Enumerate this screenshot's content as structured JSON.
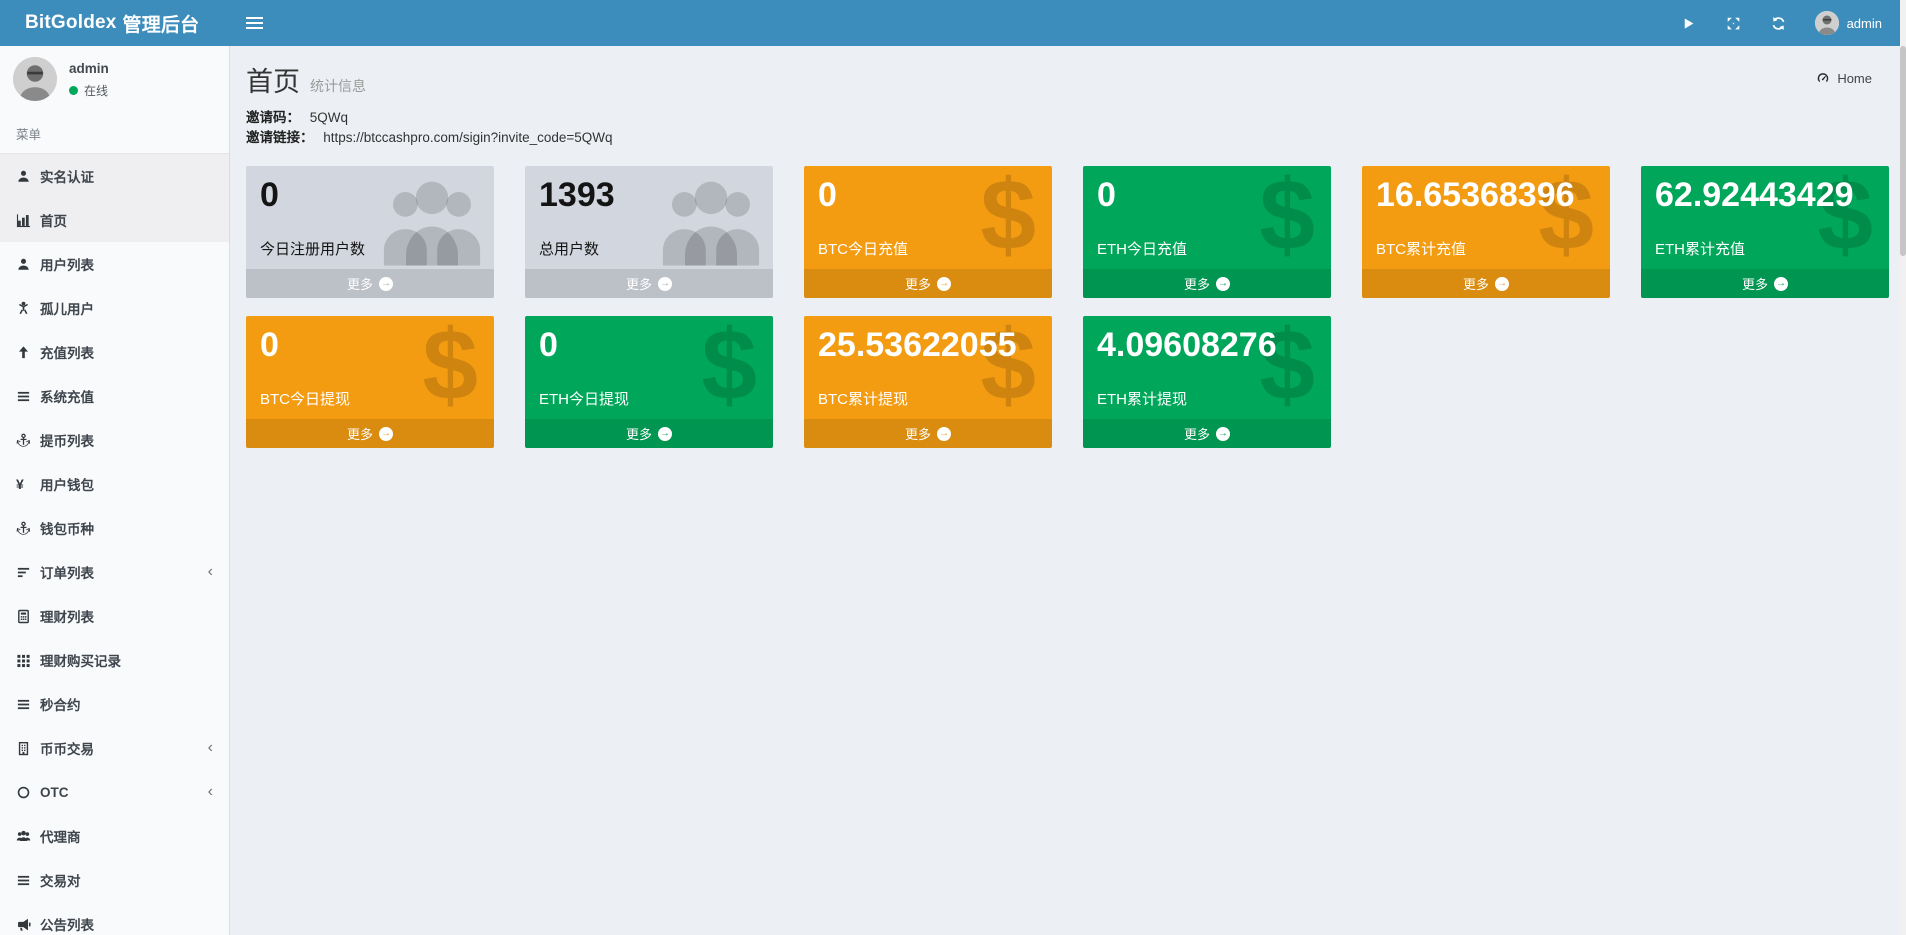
{
  "colors": {
    "navbar": "#3c8dbc",
    "orange": "#f39c12",
    "green": "#00a65a",
    "graybox": "#d2d6de",
    "content_bg": "#ecf0f5",
    "sidebar_bg": "#f9fafc",
    "active_row": "#efeff1"
  },
  "navbar": {
    "brand_bold": "BitGoldex",
    "brand_rest": "管理后台",
    "user": "admin",
    "icons": [
      "play-icon",
      "expand-icon",
      "refresh-icon"
    ]
  },
  "sidebar": {
    "user": {
      "name": "admin",
      "status": "在线"
    },
    "section_label": "菜单",
    "items": [
      {
        "key": "real-name-auth",
        "label": "实名认证",
        "icon": "user-icon",
        "active": true,
        "has_children": false
      },
      {
        "key": "home",
        "label": "首页",
        "icon": "chart-bar-icon",
        "active": true,
        "has_children": false
      },
      {
        "key": "user-list",
        "label": "用户列表",
        "icon": "user-icon",
        "active": false,
        "has_children": false
      },
      {
        "key": "orphan-users",
        "label": "孤儿用户",
        "icon": "child-icon",
        "active": false,
        "has_children": false
      },
      {
        "key": "recharge-list",
        "label": "充值列表",
        "icon": "arrow-up-icon",
        "active": false,
        "has_children": false
      },
      {
        "key": "system-recharge",
        "label": "系统充值",
        "icon": "list-icon",
        "active": false,
        "has_children": false
      },
      {
        "key": "withdraw-list",
        "label": "提币列表",
        "icon": "anchor-icon",
        "active": false,
        "has_children": false
      },
      {
        "key": "user-wallet",
        "label": "用户钱包",
        "icon": "yen-icon",
        "active": false,
        "has_children": false
      },
      {
        "key": "wallet-currency",
        "label": "钱包币种",
        "icon": "anchor-icon",
        "active": false,
        "has_children": false
      },
      {
        "key": "order-list",
        "label": "订单列表",
        "icon": "sort-icon",
        "active": false,
        "has_children": true
      },
      {
        "key": "finance-list",
        "label": "理财列表",
        "icon": "calculator-icon",
        "active": false,
        "has_children": false
      },
      {
        "key": "finance-buy-records",
        "label": "理财购买记录",
        "icon": "grid-icon",
        "active": false,
        "has_children": false
      },
      {
        "key": "second-contract",
        "label": "秒合约",
        "icon": "list-icon",
        "active": false,
        "has_children": false
      },
      {
        "key": "coin-trade",
        "label": "币币交易",
        "icon": "building-icon",
        "active": false,
        "has_children": true
      },
      {
        "key": "otc",
        "label": "OTC",
        "icon": "circle-o-icon",
        "active": false,
        "has_children": true
      },
      {
        "key": "agents",
        "label": "代理商",
        "icon": "users-icon",
        "active": false,
        "has_children": false
      },
      {
        "key": "trading-pairs",
        "label": "交易对",
        "icon": "list-icon",
        "active": false,
        "has_children": false
      },
      {
        "key": "announcement-list",
        "label": "公告列表",
        "icon": "bullhorn-icon",
        "active": false,
        "has_children": false
      }
    ]
  },
  "content": {
    "header": {
      "title": "首页",
      "subtitle": "统计信息",
      "breadcrumb": "Home",
      "breadcrumb_icon": "dashboard-icon"
    },
    "invite": {
      "code_label": "邀请码：",
      "code": "5QWq",
      "link_label": "邀请链接：",
      "link": "https://btccashpro.com/sigin?invite_code=5QWq"
    },
    "more_label": "更多",
    "boxes": [
      {
        "key": "today-registered-users",
        "value": "0",
        "label": "今日注册用户数",
        "color": "gray",
        "icon": "users-icon"
      },
      {
        "key": "total-users",
        "value": "1393",
        "label": "总用户数",
        "color": "gray",
        "icon": "users-icon"
      },
      {
        "key": "btc-today-recharge",
        "value": "0",
        "label": "BTC今日充值",
        "color": "orange",
        "icon": "dollar-icon"
      },
      {
        "key": "eth-today-recharge",
        "value": "0",
        "label": "ETH今日充值",
        "color": "green",
        "icon": "dollar-icon"
      },
      {
        "key": "btc-total-recharge",
        "value": "16.65368396",
        "label": "BTC累计充值",
        "color": "orange",
        "icon": "dollar-icon"
      },
      {
        "key": "eth-total-recharge",
        "value": "62.92443429",
        "label": "ETH累计充值",
        "color": "green",
        "icon": "dollar-icon"
      },
      {
        "key": "btc-today-withdraw",
        "value": "0",
        "label": "BTC今日提现",
        "color": "orange",
        "icon": "dollar-icon"
      },
      {
        "key": "eth-today-withdraw",
        "value": "0",
        "label": "ETH今日提现",
        "color": "green",
        "icon": "dollar-icon"
      },
      {
        "key": "btc-total-withdraw",
        "value": "25.53622055",
        "label": "BTC累计提现",
        "color": "orange",
        "icon": "dollar-icon"
      },
      {
        "key": "eth-total-withdraw",
        "value": "4.09608276",
        "label": "ETH累计提现",
        "color": "green",
        "icon": "dollar-icon"
      }
    ]
  }
}
